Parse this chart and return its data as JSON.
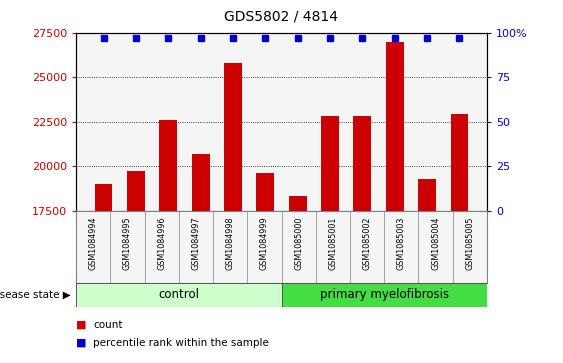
{
  "title": "GDS5802 / 4814",
  "samples": [
    "GSM1084994",
    "GSM1084995",
    "GSM1084996",
    "GSM1084997",
    "GSM1084998",
    "GSM1084999",
    "GSM1085000",
    "GSM1085001",
    "GSM1085002",
    "GSM1085003",
    "GSM1085004",
    "GSM1085005"
  ],
  "counts": [
    19000,
    19700,
    22600,
    20700,
    25800,
    19600,
    18300,
    22800,
    22800,
    27000,
    19300,
    22900
  ],
  "percentiles": [
    97,
    97,
    97,
    97,
    97,
    97,
    97,
    97,
    97,
    97,
    97,
    97
  ],
  "ylim_left": [
    17500,
    27500
  ],
  "ylim_right": [
    0,
    100
  ],
  "yticks_left": [
    17500,
    20000,
    22500,
    25000,
    27500
  ],
  "yticks_right": [
    0,
    25,
    50,
    75,
    100
  ],
  "bar_color": "#cc0000",
  "dot_color": "#0000cc",
  "n_control": 6,
  "n_disease": 6,
  "control_label": "control",
  "disease_label": "primary myelofibrosis",
  "disease_state_label": "disease state",
  "legend_count_label": "count",
  "legend_percentile_label": "percentile rank within the sample",
  "bg_plot": "#f5f5f5",
  "bg_control": "#ccffcc",
  "bg_disease": "#44dd44",
  "tick_label_color_left": "#cc0000",
  "tick_label_color_right": "#0000cc",
  "sample_box_color": "#cccccc"
}
